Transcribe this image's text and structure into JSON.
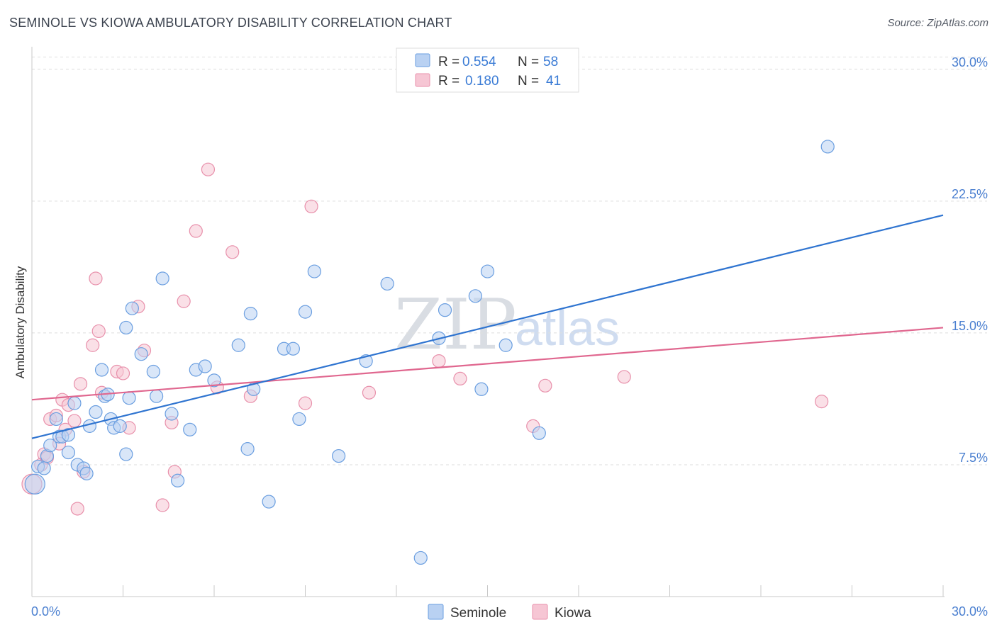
{
  "header": {
    "title": "SEMINOLE VS KIOWA AMBULATORY DISABILITY CORRELATION CHART",
    "source": "Source: ZipAtlas.com"
  },
  "watermark": {
    "zip": "ZIP",
    "atlas": "atlas"
  },
  "colors": {
    "seminole": "#6a9ee0",
    "seminole_fill": "#b9d1f2",
    "seminole_line": "#2f74d0",
    "kiowa": "#e890ab",
    "kiowa_fill": "#f6c6d4",
    "kiowa_line": "#e0678f",
    "tick_text": "#4a7fd0"
  },
  "legend": {
    "rows": [
      {
        "r_label": "R =",
        "r_value": "0.554",
        "n_label": "N =",
        "n_value": "58"
      },
      {
        "r_label": "R =",
        "r_value": "0.180",
        "n_label": "N =",
        "n_value": "41"
      }
    ]
  },
  "bottom_legend": {
    "seminole": "Seminole",
    "kiowa": "Kiowa"
  },
  "chart_data": {
    "type": "scatter",
    "title": "SEMINOLE VS KIOWA AMBULATORY DISABILITY CORRELATION CHART",
    "xlabel": "",
    "ylabel": "Ambulatory Disability",
    "xlim": [
      0,
      30
    ],
    "ylim": [
      0,
      31
    ],
    "x_tick_labels": [
      "0.0%",
      "30.0%"
    ],
    "y_ticks": [
      7.5,
      15.0,
      22.5,
      30.0
    ],
    "y_tick_labels": [
      "7.5%",
      "15.0%",
      "22.5%",
      "30.0%"
    ],
    "grid": true,
    "legend_position": "top-center",
    "series": [
      {
        "name": "Seminole",
        "r": 0.554,
        "n": 58,
        "trend": [
          [
            0,
            9.0
          ],
          [
            30,
            21.7
          ]
        ],
        "points": [
          [
            0.1,
            6.4
          ],
          [
            0.2,
            7.4
          ],
          [
            0.4,
            7.3
          ],
          [
            0.5,
            8.0
          ],
          [
            0.6,
            8.6
          ],
          [
            0.8,
            10.1
          ],
          [
            0.9,
            9.1
          ],
          [
            1.0,
            9.1
          ],
          [
            1.2,
            9.2
          ],
          [
            1.2,
            8.2
          ],
          [
            1.4,
            11.0
          ],
          [
            1.5,
            7.5
          ],
          [
            1.7,
            7.3
          ],
          [
            1.8,
            7.0
          ],
          [
            1.9,
            9.7
          ],
          [
            2.1,
            10.5
          ],
          [
            2.3,
            12.9
          ],
          [
            2.4,
            11.4
          ],
          [
            2.5,
            11.5
          ],
          [
            2.6,
            10.1
          ],
          [
            2.7,
            9.6
          ],
          [
            2.9,
            9.7
          ],
          [
            3.1,
            15.3
          ],
          [
            3.1,
            8.1
          ],
          [
            3.2,
            11.3
          ],
          [
            3.3,
            16.4
          ],
          [
            3.6,
            13.8
          ],
          [
            4.0,
            12.8
          ],
          [
            4.1,
            11.4
          ],
          [
            4.3,
            18.1
          ],
          [
            4.6,
            10.4
          ],
          [
            4.8,
            6.6
          ],
          [
            5.2,
            9.5
          ],
          [
            5.4,
            12.9
          ],
          [
            5.7,
            13.1
          ],
          [
            6.0,
            12.3
          ],
          [
            6.8,
            14.3
          ],
          [
            7.1,
            8.4
          ],
          [
            7.2,
            16.1
          ],
          [
            7.3,
            11.8
          ],
          [
            7.8,
            5.4
          ],
          [
            8.3,
            14.1
          ],
          [
            8.6,
            14.1
          ],
          [
            8.8,
            10.1
          ],
          [
            9.0,
            16.2
          ],
          [
            9.3,
            18.5
          ],
          [
            10.1,
            8.0
          ],
          [
            11.0,
            13.4
          ],
          [
            11.7,
            17.8
          ],
          [
            12.8,
            2.2
          ],
          [
            13.4,
            14.7
          ],
          [
            13.6,
            16.3
          ],
          [
            14.6,
            17.1
          ],
          [
            14.8,
            11.8
          ],
          [
            15.0,
            18.5
          ],
          [
            15.6,
            14.3
          ],
          [
            16.7,
            9.3
          ],
          [
            26.2,
            25.6
          ]
        ]
      },
      {
        "name": "Kiowa",
        "r": 0.18,
        "n": 41,
        "trend": [
          [
            0,
            11.2
          ],
          [
            30,
            15.3
          ]
        ],
        "points": [
          [
            0.0,
            6.4
          ],
          [
            0.3,
            7.5
          ],
          [
            0.4,
            8.1
          ],
          [
            0.5,
            7.9
          ],
          [
            0.6,
            10.1
          ],
          [
            0.8,
            10.3
          ],
          [
            0.9,
            8.7
          ],
          [
            1.0,
            11.2
          ],
          [
            1.1,
            9.5
          ],
          [
            1.2,
            10.9
          ],
          [
            1.4,
            10.0
          ],
          [
            1.5,
            5.0
          ],
          [
            1.6,
            12.1
          ],
          [
            1.7,
            7.1
          ],
          [
            2.0,
            14.3
          ],
          [
            2.1,
            18.1
          ],
          [
            2.2,
            15.1
          ],
          [
            2.3,
            11.6
          ],
          [
            2.8,
            12.8
          ],
          [
            3.0,
            12.7
          ],
          [
            3.2,
            9.6
          ],
          [
            3.5,
            16.5
          ],
          [
            3.7,
            14.0
          ],
          [
            4.3,
            5.2
          ],
          [
            4.6,
            9.9
          ],
          [
            4.7,
            7.1
          ],
          [
            5.0,
            16.8
          ],
          [
            5.4,
            20.8
          ],
          [
            5.8,
            24.3
          ],
          [
            6.1,
            11.9
          ],
          [
            6.6,
            19.6
          ],
          [
            7.2,
            11.4
          ],
          [
            9.0,
            11.0
          ],
          [
            9.2,
            22.2
          ],
          [
            11.1,
            11.6
          ],
          [
            13.4,
            13.4
          ],
          [
            14.1,
            12.4
          ],
          [
            16.5,
            9.7
          ],
          [
            16.9,
            12.0
          ],
          [
            19.5,
            12.5
          ],
          [
            26.0,
            11.1
          ]
        ]
      }
    ]
  }
}
